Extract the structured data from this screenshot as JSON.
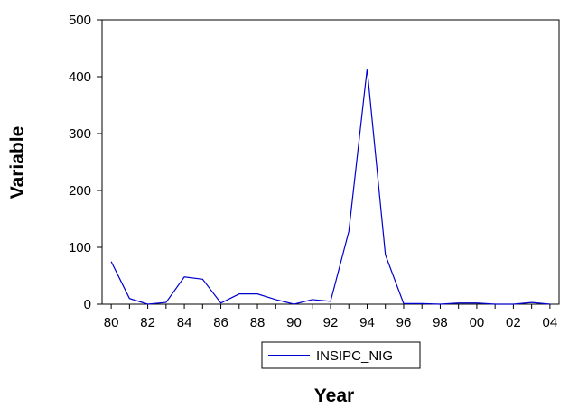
{
  "chart_data": {
    "type": "line",
    "title": "",
    "xlabel": "Year",
    "ylabel": "Variable",
    "x": [
      1980,
      1981,
      1982,
      1983,
      1984,
      1985,
      1986,
      1987,
      1988,
      1989,
      1990,
      1991,
      1992,
      1993,
      1994,
      1995,
      1996,
      1997,
      1998,
      1999,
      2000,
      2001,
      2002,
      2003,
      2004
    ],
    "xlim": [
      1979.5,
      2004.5
    ],
    "x_tick_values": [
      1980,
      1982,
      1984,
      1986,
      1988,
      1990,
      1992,
      1994,
      1996,
      1998,
      2000,
      2002,
      2004
    ],
    "x_tick_labels": [
      "80",
      "82",
      "84",
      "86",
      "88",
      "90",
      "92",
      "94",
      "96",
      "98",
      "00",
      "02",
      "04"
    ],
    "ylim": [
      0,
      500
    ],
    "y_ticks": [
      0,
      100,
      200,
      300,
      400,
      500
    ],
    "grid": false,
    "legend_placement": "bottom-center",
    "series": [
      {
        "name": "INSIPC_NIG",
        "color": "#0000cc",
        "values": [
          75,
          10,
          0,
          3,
          48,
          44,
          2,
          18,
          18,
          8,
          0,
          8,
          5,
          128,
          414,
          87,
          1,
          1,
          0,
          2,
          2,
          0,
          0,
          3,
          0
        ]
      }
    ]
  }
}
